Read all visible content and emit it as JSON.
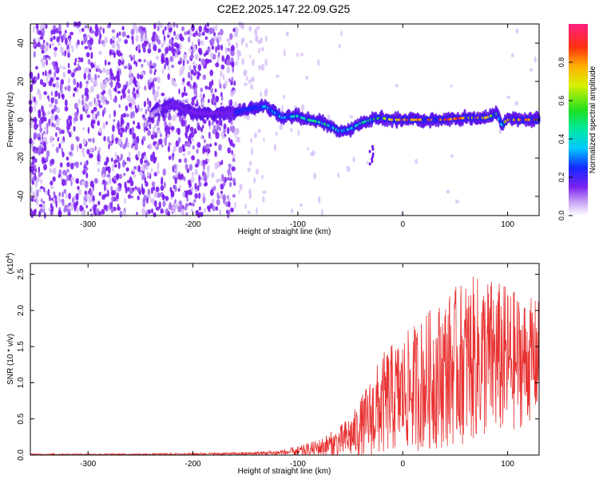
{
  "title": "C2E2.2025.147.22.09.G25",
  "chart_data": [
    {
      "type": "heatmap",
      "name": "spectrogram",
      "xlabel": "Height of straight line (km)",
      "ylabel": "Frequency (Hz)",
      "xlim": [
        -355,
        130
      ],
      "ylim": [
        -50,
        50
      ],
      "xticks": [
        -300,
        -200,
        -100,
        0,
        100
      ],
      "xtick_labels": [
        "-300",
        "-200",
        "-100",
        "0",
        "100"
      ],
      "yticks": [
        -40,
        -20,
        0,
        20,
        40
      ],
      "ytick_labels": [
        "-40",
        "-20",
        "0",
        "20",
        "40"
      ],
      "colorbar": {
        "label": "Normalized spectral amplitude",
        "range": [
          0,
          1
        ],
        "ticks": [
          0,
          0.2,
          0.4,
          0.6,
          0.8
        ],
        "tick_labels": [
          "0.0",
          "0.2",
          "0.4",
          "0.6",
          "0.8"
        ]
      },
      "signal_track": {
        "description": "dominant frequency ridge vs height",
        "x": [
          -240,
          -220,
          -200,
          -180,
          -160,
          -145,
          -130,
          -115,
          -100,
          -90,
          -80,
          -70,
          -60,
          -50,
          -40,
          -30,
          -20,
          -10,
          0,
          20,
          40,
          60,
          80,
          90,
          95,
          100,
          130
        ],
        "y": [
          3,
          8,
          4,
          3,
          4,
          6,
          7,
          1,
          2,
          0,
          -1,
          -3,
          -6,
          -5,
          -2,
          0,
          1,
          0,
          0,
          0,
          0,
          1,
          1,
          3,
          -3,
          0,
          0
        ],
        "amplitude": [
          0.1,
          0.2,
          0.2,
          0.2,
          0.25,
          0.35,
          0.45,
          0.5,
          0.55,
          0.6,
          0.6,
          0.55,
          0.5,
          0.55,
          0.6,
          0.65,
          0.7,
          0.8,
          0.95,
          0.95,
          0.95,
          0.95,
          0.9,
          0.6,
          0.5,
          0.9,
          0.95
        ]
      }
    },
    {
      "type": "line",
      "name": "snr",
      "xlabel": "Height of straight line (km)",
      "ylabel": "SNR (10 * v/v)",
      "multiplier_label": "(x10",
      "multiplier_exp": "4",
      "xlim": [
        -355,
        130
      ],
      "ylim": [
        0,
        2.65
      ],
      "xticks": [
        -300,
        -200,
        -100,
        0,
        100
      ],
      "xtick_labels": [
        "-300",
        "-200",
        "-100",
        "0",
        "100"
      ],
      "yticks": [
        0,
        0.5,
        1.0,
        1.5,
        2.0,
        2.5
      ],
      "ytick_labels": [
        "0.0",
        "0.5",
        "1.0",
        "1.5",
        "2.0",
        "2.5"
      ],
      "color": "#e83030",
      "envelope": {
        "x": [
          -355,
          -250,
          -150,
          -120,
          -100,
          -80,
          -60,
          -45,
          -35,
          -25,
          -15,
          0,
          20,
          40,
          60,
          80,
          100,
          115,
          130
        ],
        "mean": [
          0.01,
          0.01,
          0.02,
          0.03,
          0.05,
          0.1,
          0.18,
          0.3,
          0.45,
          0.6,
          0.75,
          0.85,
          1.0,
          1.15,
          1.3,
          1.35,
          1.3,
          1.3,
          1.35
        ],
        "spread": [
          0.01,
          0.01,
          0.02,
          0.04,
          0.07,
          0.12,
          0.22,
          0.35,
          0.5,
          0.65,
          0.75,
          0.8,
          0.95,
          1.05,
          1.15,
          1.15,
          1.05,
          0.9,
          0.8
        ]
      }
    }
  ]
}
